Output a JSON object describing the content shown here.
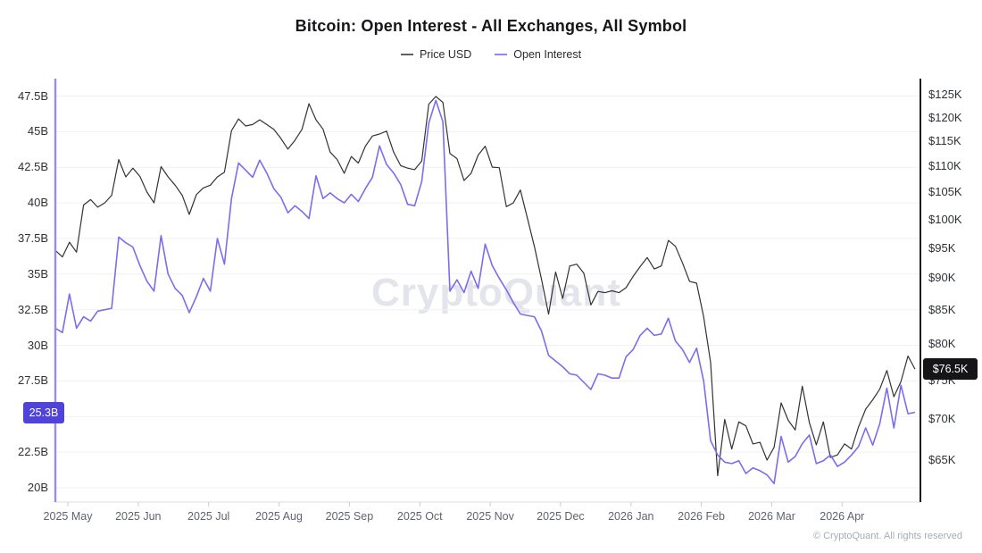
{
  "title": "Bitcoin: Open Interest - All Exchanges, All Symbol",
  "watermark": "CryptoQuant",
  "footer": "© CryptoQuant. All rights reserved",
  "legend": [
    {
      "label": "Price USD",
      "color": "#606060"
    },
    {
      "label": "Open Interest",
      "color": "#9186f2"
    }
  ],
  "colors": {
    "background": "#ffffff",
    "grid": "#f1f1f5",
    "x_axis_line": "#dcdee4",
    "month_tick": "#c9cdd4",
    "left_axis_line": "#988cf2",
    "right_axis_line": "#1a1a1d",
    "price_line": "#333333",
    "oi_line": "#7c6cf0",
    "badge_oi_bg": "#4f43d9",
    "badge_price_bg": "#151517"
  },
  "chart_data": {
    "type": "line",
    "title": "Bitcoin: Open Interest - All Exchanges, All Symbol",
    "legend_position": "top-center",
    "grid": "horizontal-only",
    "x": {
      "start_date": "2025-04-26",
      "step_days": 3,
      "month_ticks": [
        "2025 May",
        "2025 Jun",
        "2025 Jul",
        "2025 Aug",
        "2025 Sep",
        "2025 Oct",
        "2025 Nov",
        "2025 Dec",
        "2026 Jan",
        "2026 Feb",
        "2026 Mar",
        "2026 Apr"
      ]
    },
    "left_axis": {
      "label": "Open Interest",
      "unit": "USD billions",
      "scale": "linear",
      "range": [
        20,
        47.5
      ],
      "ticks": [
        47.5,
        45,
        42.5,
        40,
        37.5,
        35,
        32.5,
        30,
        27.5,
        25,
        22.5,
        20
      ],
      "tick_labels": [
        "47.5B",
        "45B",
        "42.5B",
        "40B",
        "37.5B",
        "35B",
        "32.5B",
        "30B",
        "27.5B",
        "25B",
        "22.5B",
        "20B"
      ],
      "hidden_tick": "25B",
      "current": 25.3,
      "current_value": "25.3B"
    },
    "right_axis": {
      "label": "Price USD",
      "unit": "USD thousands",
      "scale": "log",
      "range_k": [
        62,
        126
      ],
      "ticks_k": [
        125,
        120,
        115,
        110,
        105,
        100,
        95,
        90,
        85,
        80,
        75,
        70,
        65
      ],
      "tick_labels": [
        "$125K",
        "$120K",
        "$115K",
        "$110K",
        "$105K",
        "$100K",
        "$95K",
        "$90K",
        "$85K",
        "$80K",
        "$75K",
        "$70K",
        "$65K"
      ],
      "current_k": 76.5,
      "current_value": "$76.5K"
    },
    "series": [
      {
        "name": "Price USD",
        "axis": "right",
        "unit": "USD thousands",
        "color": "#333333",
        "stroke_width": 1.2,
        "values": [
          94.6,
          93.5,
          96.0,
          94.3,
          102.6,
          103.6,
          102.2,
          103.0,
          104.4,
          111.3,
          107.9,
          109.6,
          108.0,
          105.0,
          103.0,
          109.9,
          107.9,
          106.3,
          104.4,
          100.9,
          104.5,
          105.8,
          106.3,
          107.9,
          108.8,
          117.2,
          119.7,
          118.2,
          118.5,
          119.5,
          118.5,
          117.5,
          115.6,
          113.4,
          115.2,
          117.5,
          123.0,
          119.5,
          117.5,
          112.8,
          111.3,
          108.6,
          111.9,
          110.6,
          114.0,
          116.1,
          116.5,
          117.1,
          112.8,
          110.1,
          109.6,
          109.3,
          111.0,
          122.9,
          124.6,
          123.3,
          112.5,
          111.5,
          107.2,
          108.6,
          112.2,
          114.0,
          109.8,
          109.7,
          102.3,
          103.0,
          105.4,
          100.2,
          95.2,
          89.8,
          84.4,
          91.0,
          86.8,
          92.0,
          92.3,
          90.8,
          85.8,
          87.9,
          87.7,
          88.0,
          87.7,
          88.5,
          90.3,
          91.9,
          93.4,
          91.5,
          92.0,
          96.3,
          95.3,
          92.5,
          89.5,
          89.2,
          84.0,
          77.4,
          63.2,
          69.9,
          66.3,
          69.6,
          69.1,
          66.9,
          67.1,
          65.0,
          66.5,
          72.0,
          69.8,
          68.6,
          74.2,
          69.5,
          66.8,
          69.6,
          65.3,
          65.6,
          66.9,
          66.3,
          69.0,
          71.2,
          72.4,
          73.8,
          76.3,
          72.8,
          74.8,
          78.3,
          76.5
        ]
      },
      {
        "name": "Open Interest",
        "axis": "left",
        "unit": "USD billions",
        "color": "#7c6cf0",
        "stroke_width": 1.6,
        "values": [
          31.2,
          30.9,
          33.6,
          31.2,
          32.0,
          31.7,
          32.4,
          32.5,
          32.6,
          37.6,
          37.2,
          36.9,
          35.6,
          34.5,
          33.8,
          37.7,
          35.0,
          34.0,
          33.5,
          32.3,
          33.4,
          34.7,
          33.8,
          37.5,
          35.7,
          40.3,
          42.8,
          42.3,
          41.8,
          43.0,
          42.1,
          41.0,
          40.4,
          39.3,
          39.8,
          39.4,
          38.9,
          41.9,
          40.3,
          40.7,
          40.3,
          40.0,
          40.6,
          40.1,
          41.0,
          41.8,
          44.0,
          42.7,
          42.1,
          41.3,
          39.9,
          39.8,
          41.5,
          45.6,
          47.2,
          45.7,
          33.8,
          34.6,
          33.7,
          35.2,
          34.0,
          37.1,
          35.6,
          34.7,
          33.9,
          33.0,
          32.2,
          32.1,
          32.0,
          31.0,
          29.3,
          28.9,
          28.5,
          28.0,
          27.9,
          27.4,
          26.9,
          28.0,
          27.9,
          27.7,
          27.7,
          29.2,
          29.7,
          30.7,
          31.2,
          30.7,
          30.8,
          31.9,
          30.3,
          29.7,
          28.8,
          29.8,
          27.5,
          23.3,
          22.3,
          21.8,
          21.7,
          21.9,
          21.0,
          21.4,
          21.2,
          20.9,
          20.3,
          23.6,
          21.8,
          22.2,
          23.1,
          23.7,
          21.7,
          21.9,
          22.3,
          21.5,
          21.8,
          22.3,
          22.9,
          24.2,
          23.0,
          24.5,
          27.0,
          24.2,
          27.2,
          25.2,
          25.3
        ]
      }
    ]
  }
}
